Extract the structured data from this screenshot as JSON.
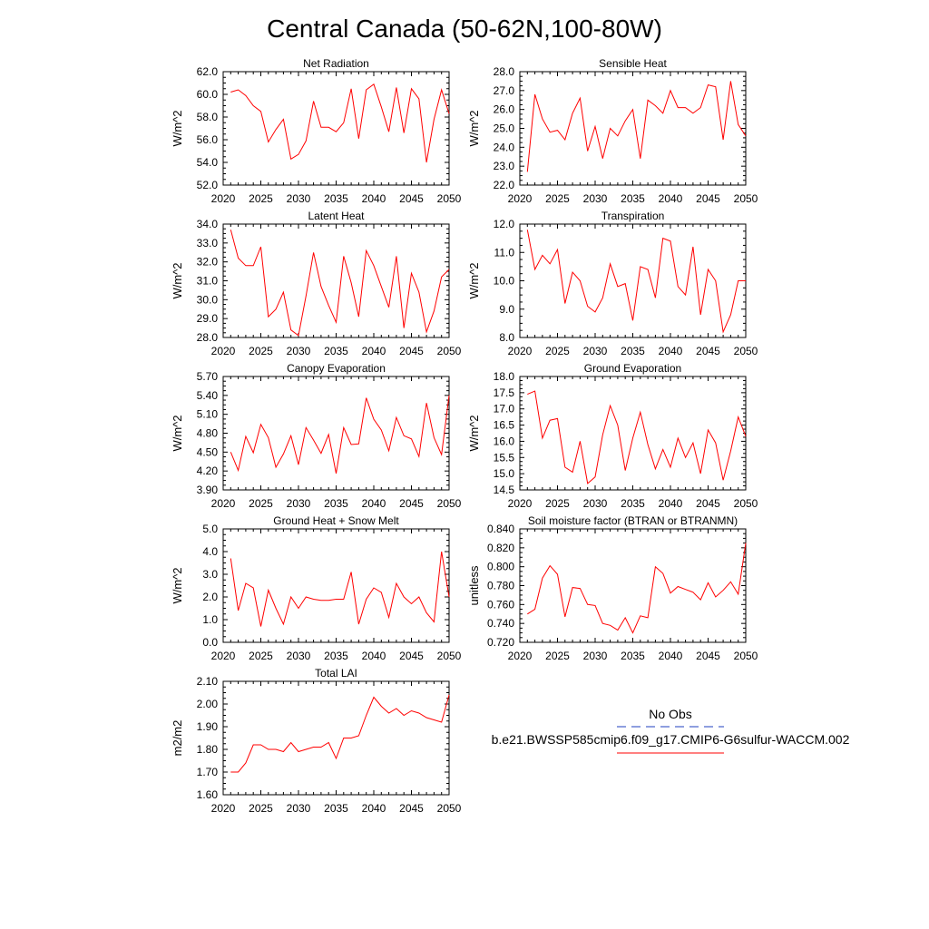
{
  "figure_title": "Central Canada (50-62N,100-80W)",
  "legend": {
    "items": [
      {
        "label": "No Obs",
        "color": "#1f3fbf",
        "style": "dashed"
      },
      {
        "label": "b.e21.BWSSP585cmip6.f09_g17.CMIP6-G6sulfur-WACCM.002",
        "color": "#ff0000",
        "style": "solid"
      }
    ]
  },
  "chart_data": [
    {
      "type": "line",
      "title": "Net Radiation",
      "ylabel": "W/m^2",
      "xlim": [
        2020,
        2050
      ],
      "ylim": [
        52.0,
        62.0
      ],
      "xticks": [
        2020,
        2025,
        2030,
        2035,
        2040,
        2045,
        2050
      ],
      "yticks": [
        "52.0",
        "54.0",
        "56.0",
        "58.0",
        "60.0",
        "62.0"
      ],
      "x": [
        2021,
        2022,
        2023,
        2024,
        2025,
        2026,
        2027,
        2028,
        2029,
        2030,
        2031,
        2032,
        2033,
        2034,
        2035,
        2036,
        2037,
        2038,
        2039,
        2040,
        2041,
        2042,
        2043,
        2044,
        2045,
        2046,
        2047,
        2048,
        2049,
        2050
      ],
      "series": [
        {
          "color": "#ff0000",
          "values": [
            60.2,
            60.4,
            59.9,
            59.0,
            58.5,
            55.8,
            56.9,
            57.8,
            54.3,
            54.7,
            55.9,
            59.4,
            57.1,
            57.1,
            56.7,
            57.5,
            60.5,
            56.1,
            60.4,
            60.9,
            58.9,
            56.7,
            60.6,
            56.6,
            60.5,
            59.6,
            54.0,
            57.8,
            60.4,
            58.3
          ]
        }
      ]
    },
    {
      "type": "line",
      "title": "Sensible Heat",
      "ylabel": "W/m^2",
      "xlim": [
        2020,
        2050
      ],
      "ylim": [
        22.0,
        28.0
      ],
      "xticks": [
        2020,
        2025,
        2030,
        2035,
        2040,
        2045,
        2050
      ],
      "yticks": [
        "22.0",
        "23.0",
        "24.0",
        "25.0",
        "26.0",
        "27.0",
        "28.0"
      ],
      "x": [
        2021,
        2022,
        2023,
        2024,
        2025,
        2026,
        2027,
        2028,
        2029,
        2030,
        2031,
        2032,
        2033,
        2034,
        2035,
        2036,
        2037,
        2038,
        2039,
        2040,
        2041,
        2042,
        2043,
        2044,
        2045,
        2046,
        2047,
        2048,
        2049,
        2050
      ],
      "series": [
        {
          "color": "#ff0000",
          "values": [
            22.7,
            26.8,
            25.5,
            24.8,
            24.9,
            24.4,
            25.8,
            26.6,
            23.8,
            25.1,
            23.4,
            25.0,
            24.6,
            25.4,
            26.0,
            23.4,
            26.5,
            26.2,
            25.8,
            27.0,
            26.1,
            26.1,
            25.8,
            26.1,
            27.3,
            27.2,
            24.4,
            27.5,
            25.2,
            24.6
          ]
        }
      ]
    },
    {
      "type": "line",
      "title": "Latent Heat",
      "ylabel": "W/m^2",
      "xlim": [
        2020,
        2050
      ],
      "ylim": [
        28.0,
        34.0
      ],
      "xticks": [
        2020,
        2025,
        2030,
        2035,
        2040,
        2045,
        2050
      ],
      "yticks": [
        "28.0",
        "29.0",
        "30.0",
        "31.0",
        "32.0",
        "33.0",
        "34.0"
      ],
      "x": [
        2021,
        2022,
        2023,
        2024,
        2025,
        2026,
        2027,
        2028,
        2029,
        2030,
        2031,
        2032,
        2033,
        2034,
        2035,
        2036,
        2037,
        2038,
        2039,
        2040,
        2041,
        2042,
        2043,
        2044,
        2045,
        2046,
        2047,
        2048,
        2049,
        2050
      ],
      "series": [
        {
          "color": "#ff0000",
          "values": [
            33.7,
            32.2,
            31.8,
            31.8,
            32.8,
            29.1,
            29.5,
            30.4,
            28.4,
            28.1,
            30.2,
            32.5,
            30.7,
            29.7,
            28.8,
            32.3,
            30.9,
            29.1,
            32.6,
            31.8,
            30.7,
            29.6,
            32.3,
            28.5,
            31.4,
            30.4,
            28.3,
            29.4,
            31.2,
            31.6
          ]
        }
      ]
    },
    {
      "type": "line",
      "title": "Transpiration",
      "ylabel": "W/m^2",
      "xlim": [
        2020,
        2050
      ],
      "ylim": [
        8.0,
        12.0
      ],
      "xticks": [
        2020,
        2025,
        2030,
        2035,
        2040,
        2045,
        2050
      ],
      "yticks": [
        "8.0",
        "9.0",
        "10.0",
        "11.0",
        "12.0"
      ],
      "x": [
        2021,
        2022,
        2023,
        2024,
        2025,
        2026,
        2027,
        2028,
        2029,
        2030,
        2031,
        2032,
        2033,
        2034,
        2035,
        2036,
        2037,
        2038,
        2039,
        2040,
        2041,
        2042,
        2043,
        2044,
        2045,
        2046,
        2047,
        2048,
        2049,
        2050
      ],
      "series": [
        {
          "color": "#ff0000",
          "values": [
            11.8,
            10.4,
            10.9,
            10.6,
            11.1,
            9.2,
            10.3,
            10.0,
            9.1,
            8.9,
            9.4,
            10.6,
            9.8,
            9.9,
            8.6,
            10.5,
            10.4,
            9.4,
            11.5,
            11.4,
            9.8,
            9.5,
            11.2,
            8.8,
            10.4,
            10.0,
            8.2,
            8.8,
            10.0,
            10.0
          ]
        }
      ]
    },
    {
      "type": "line",
      "title": "Canopy Evaporation",
      "ylabel": "W/m^2",
      "xlim": [
        2020,
        2050
      ],
      "ylim": [
        3.9,
        5.7
      ],
      "xticks": [
        2020,
        2025,
        2030,
        2035,
        2040,
        2045,
        2050
      ],
      "yticks": [
        "3.90",
        "4.20",
        "4.50",
        "4.80",
        "5.10",
        "5.40",
        "5.70"
      ],
      "x": [
        2021,
        2022,
        2023,
        2024,
        2025,
        2026,
        2027,
        2028,
        2029,
        2030,
        2031,
        2032,
        2033,
        2034,
        2035,
        2036,
        2037,
        2038,
        2039,
        2040,
        2041,
        2042,
        2043,
        2044,
        2045,
        2046,
        2047,
        2048,
        2049,
        2050
      ],
      "series": [
        {
          "color": "#ff0000",
          "values": [
            4.5,
            4.21,
            4.75,
            4.49,
            4.94,
            4.73,
            4.26,
            4.47,
            4.76,
            4.3,
            4.89,
            4.69,
            4.48,
            4.78,
            4.16,
            4.89,
            4.62,
            4.63,
            5.36,
            5.02,
            4.85,
            4.52,
            5.05,
            4.76,
            4.71,
            4.43,
            5.28,
            4.73,
            4.46,
            5.4
          ]
        }
      ]
    },
    {
      "type": "line",
      "title": "Ground Evaporation",
      "ylabel": "W/m^2",
      "xlim": [
        2020,
        2050
      ],
      "ylim": [
        14.5,
        18.0
      ],
      "xticks": [
        2020,
        2025,
        2030,
        2035,
        2040,
        2045,
        2050
      ],
      "yticks": [
        "14.5",
        "15.0",
        "15.5",
        "16.0",
        "16.5",
        "17.0",
        "17.5",
        "18.0"
      ],
      "x": [
        2021,
        2022,
        2023,
        2024,
        2025,
        2026,
        2027,
        2028,
        2029,
        2030,
        2031,
        2032,
        2033,
        2034,
        2035,
        2036,
        2037,
        2038,
        2039,
        2040,
        2041,
        2042,
        2043,
        2044,
        2045,
        2046,
        2047,
        2048,
        2049,
        2050
      ],
      "series": [
        {
          "color": "#ff0000",
          "values": [
            17.45,
            17.55,
            16.1,
            16.65,
            16.7,
            15.2,
            15.05,
            16.0,
            14.7,
            14.9,
            16.2,
            17.1,
            16.5,
            15.1,
            16.1,
            16.9,
            15.9,
            15.15,
            15.75,
            15.2,
            16.1,
            15.5,
            15.95,
            15.0,
            16.35,
            15.95,
            14.8,
            15.7,
            16.75,
            16.15
          ]
        }
      ]
    },
    {
      "type": "line",
      "title": "Ground Heat + Snow Melt",
      "ylabel": "W/m^2",
      "xlim": [
        2020,
        2050
      ],
      "ylim": [
        0.0,
        5.0
      ],
      "xticks": [
        2020,
        2025,
        2030,
        2035,
        2040,
        2045,
        2050
      ],
      "yticks": [
        "0.0",
        "1.0",
        "2.0",
        "3.0",
        "4.0",
        "5.0"
      ],
      "x": [
        2021,
        2022,
        2023,
        2024,
        2025,
        2026,
        2027,
        2028,
        2029,
        2030,
        2031,
        2032,
        2033,
        2034,
        2035,
        2036,
        2037,
        2038,
        2039,
        2040,
        2041,
        2042,
        2043,
        2044,
        2045,
        2046,
        2047,
        2048,
        2049,
        2050
      ],
      "series": [
        {
          "color": "#ff0000",
          "values": [
            3.7,
            1.4,
            2.6,
            2.4,
            0.7,
            2.3,
            1.5,
            0.8,
            2.0,
            1.5,
            2.0,
            1.9,
            1.85,
            1.85,
            1.9,
            1.9,
            3.1,
            0.8,
            1.9,
            2.4,
            2.2,
            1.1,
            2.6,
            2.0,
            1.7,
            2.0,
            1.3,
            0.9,
            4.0,
            2.0
          ]
        }
      ]
    },
    {
      "type": "line",
      "title": "Soil moisture factor (BTRAN or BTRANMN)",
      "ylabel": "unitless",
      "xlim": [
        2020,
        2050
      ],
      "ylim": [
        0.72,
        0.84
      ],
      "xticks": [
        2020,
        2025,
        2030,
        2035,
        2040,
        2045,
        2050
      ],
      "yticks": [
        "0.720",
        "0.740",
        "0.760",
        "0.780",
        "0.800",
        "0.820",
        "0.840"
      ],
      "x": [
        2021,
        2022,
        2023,
        2024,
        2025,
        2026,
        2027,
        2028,
        2029,
        2030,
        2031,
        2032,
        2033,
        2034,
        2035,
        2036,
        2037,
        2038,
        2039,
        2040,
        2041,
        2042,
        2043,
        2044,
        2045,
        2046,
        2047,
        2048,
        2049,
        2050
      ],
      "series": [
        {
          "color": "#ff0000",
          "values": [
            0.75,
            0.755,
            0.788,
            0.801,
            0.792,
            0.747,
            0.778,
            0.777,
            0.76,
            0.759,
            0.74,
            0.738,
            0.733,
            0.746,
            0.73,
            0.748,
            0.746,
            0.8,
            0.793,
            0.772,
            0.779,
            0.776,
            0.773,
            0.765,
            0.783,
            0.768,
            0.775,
            0.784,
            0.771,
            0.825
          ]
        }
      ]
    },
    {
      "type": "line",
      "title": "Total LAI",
      "ylabel": "m2/m2",
      "xlim": [
        2020,
        2050
      ],
      "ylim": [
        1.6,
        2.1
      ],
      "xticks": [
        2020,
        2025,
        2030,
        2035,
        2040,
        2045,
        2050
      ],
      "yticks": [
        "1.60",
        "1.70",
        "1.80",
        "1.90",
        "2.00",
        "2.10"
      ],
      "x": [
        2021,
        2022,
        2023,
        2024,
        2025,
        2026,
        2027,
        2028,
        2029,
        2030,
        2031,
        2032,
        2033,
        2034,
        2035,
        2036,
        2037,
        2038,
        2039,
        2040,
        2041,
        2042,
        2043,
        2044,
        2045,
        2046,
        2047,
        2048,
        2049,
        2050
      ],
      "series": [
        {
          "color": "#ff0000",
          "values": [
            1.7,
            1.7,
            1.74,
            1.82,
            1.82,
            1.8,
            1.8,
            1.79,
            1.83,
            1.79,
            1.8,
            1.81,
            1.81,
            1.83,
            1.76,
            1.85,
            1.85,
            1.86,
            1.95,
            2.03,
            1.99,
            1.96,
            1.98,
            1.95,
            1.97,
            1.96,
            1.94,
            1.93,
            1.92,
            2.04
          ]
        }
      ]
    }
  ]
}
